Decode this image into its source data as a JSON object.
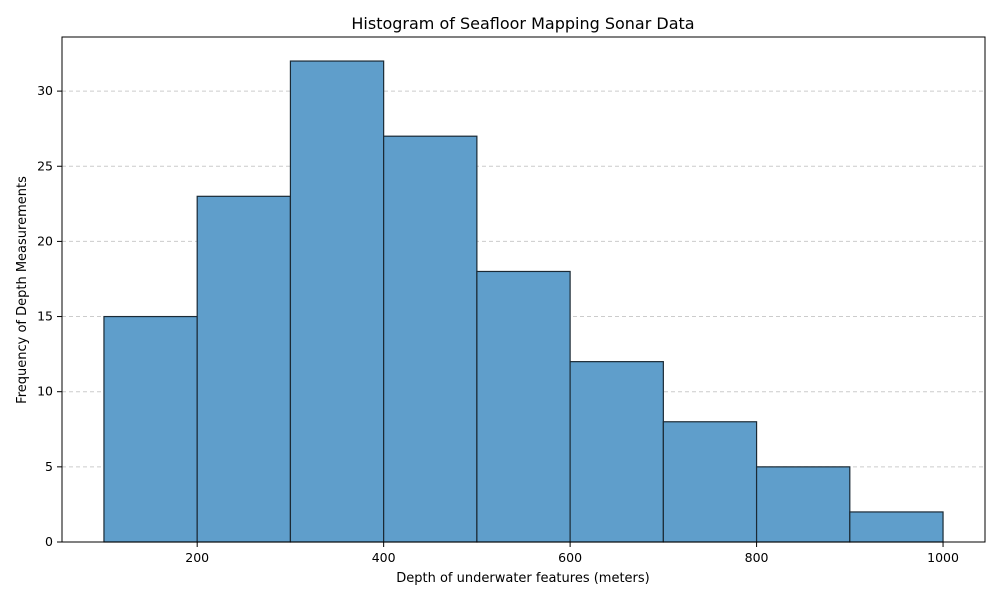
{
  "chart_data": {
    "type": "bar",
    "title": "Histogram of Seafloor Mapping Sonar Data",
    "xlabel": "Depth of underwater features (meters)",
    "ylabel": "Frequency of Depth Measurements",
    "bins": [
      {
        "start": 100,
        "end": 200,
        "count": 15
      },
      {
        "start": 200,
        "end": 300,
        "count": 23
      },
      {
        "start": 300,
        "end": 400,
        "count": 32
      },
      {
        "start": 400,
        "end": 500,
        "count": 27
      },
      {
        "start": 500,
        "end": 600,
        "count": 18
      },
      {
        "start": 600,
        "end": 700,
        "count": 12
      },
      {
        "start": 700,
        "end": 800,
        "count": 8
      },
      {
        "start": 800,
        "end": 900,
        "count": 5
      },
      {
        "start": 900,
        "end": 1000,
        "count": 2
      }
    ],
    "xlim": [
      55,
      1045
    ],
    "ylim": [
      0,
      33.6
    ],
    "xticks": [
      200,
      400,
      600,
      800,
      1000
    ],
    "yticks": [
      0,
      5,
      10,
      15,
      20,
      25,
      30
    ],
    "grid": {
      "axis": "y",
      "style": "dashed",
      "color": "#cccccc"
    },
    "bar_color": "#5f9ecb",
    "bar_edge_color": "#1b2a35"
  }
}
